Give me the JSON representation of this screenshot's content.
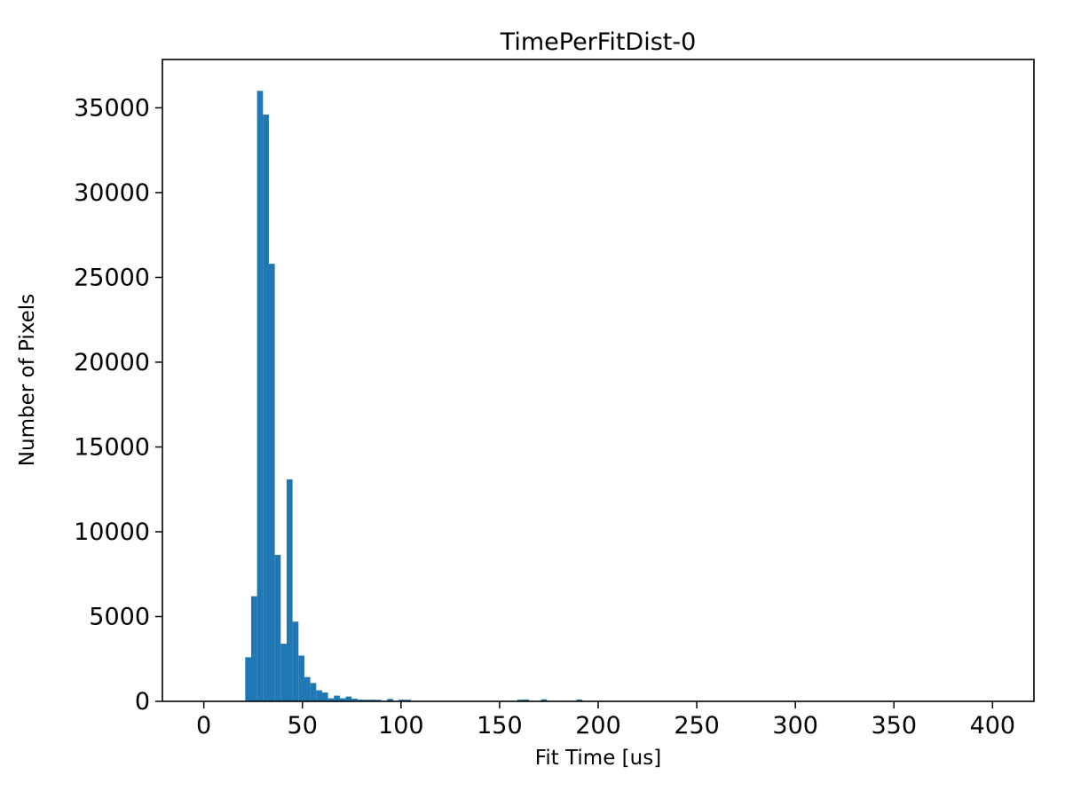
{
  "chart_data": {
    "type": "bar",
    "subtype": "histogram",
    "title": "TimePerFitDist-0",
    "xlabel": "Fit Time [us]",
    "ylabel": "Number of Pixels",
    "bar_color": "#1f77b4",
    "axis_color": "#000000",
    "background_color": "#ffffff",
    "grid": false,
    "legend": null,
    "xlim": [
      -21,
      421
    ],
    "ylim": [
      0,
      37850
    ],
    "xticks": [
      0,
      50,
      100,
      150,
      200,
      250,
      300,
      350,
      400
    ],
    "yticks": [
      0,
      5000,
      10000,
      15000,
      20000,
      25000,
      30000,
      35000
    ],
    "bin_width": 3,
    "bin_starts": [
      21,
      24,
      27,
      30,
      33,
      36,
      39,
      42,
      45,
      48,
      51,
      54,
      57,
      60,
      63,
      66,
      69,
      72,
      75,
      78,
      81,
      84,
      87,
      93,
      99,
      102,
      159,
      162,
      171,
      189
    ],
    "counts": [
      2600,
      6200,
      36000,
      34600,
      25800,
      8640,
      3400,
      13090,
      4700,
      2700,
      1430,
      1080,
      650,
      520,
      180,
      335,
      180,
      283,
      160,
      100,
      95,
      100,
      95,
      140,
      100,
      95,
      100,
      110,
      120,
      110
    ]
  }
}
